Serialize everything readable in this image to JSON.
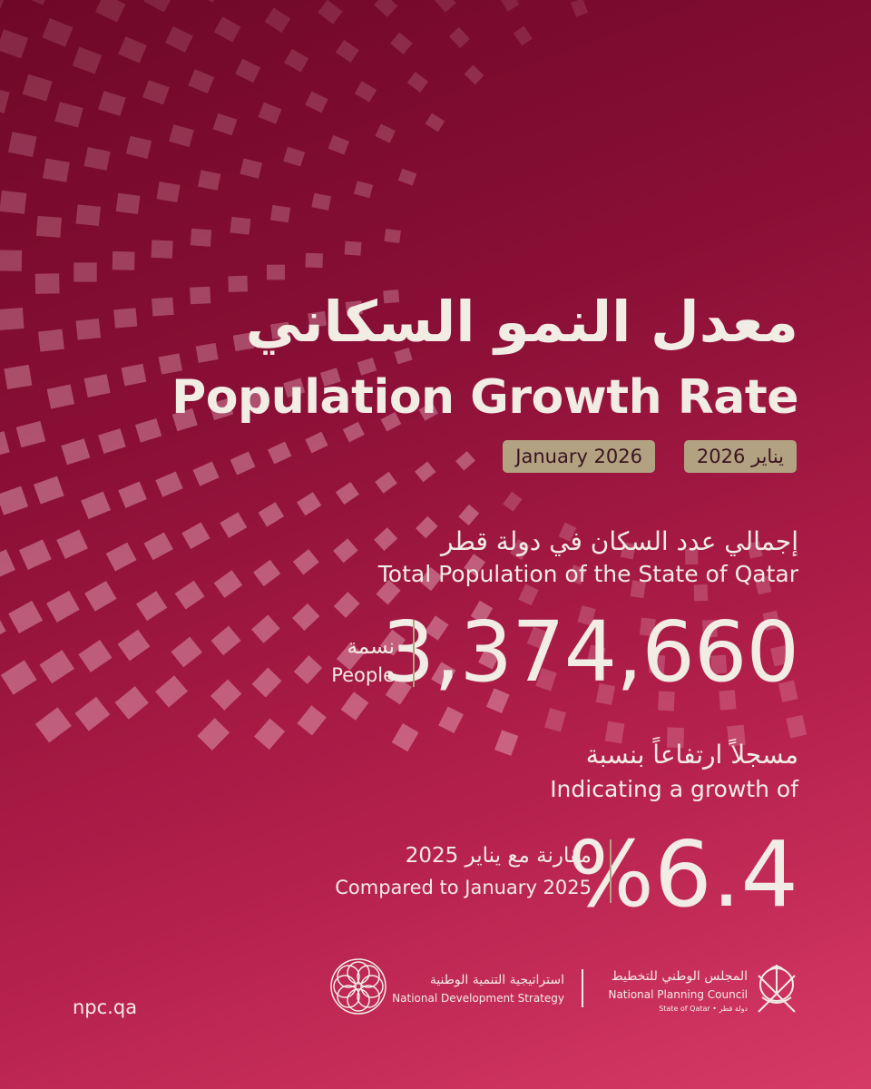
{
  "header": {
    "title_ar": "معدل النمو السكاني",
    "title_en": "Population Growth Rate",
    "date_ar": "يناير 2026",
    "date_en": "January 2026"
  },
  "population": {
    "label_ar": "إجمالي عدد السكان في دولة قطر",
    "label_en": "Total Population of the State of Qatar",
    "value": "3,374,660",
    "unit_ar": "نسمة",
    "unit_en": "People"
  },
  "growth": {
    "label_ar": "مسجلاً ارتفاعاً بنسبة",
    "label_en": "Indicating a growth of",
    "value": "%6.4",
    "compare_ar": "مقارنة مع يناير 2025",
    "compare_en": "Compared to January 2025"
  },
  "footer": {
    "website": "npc.qa",
    "nds_ar": "استراتيجية التنمية الوطنية",
    "nds_en": "National Development Strategy",
    "npc_ar": "المجلس الوطني للتخطيط",
    "npc_en": "National Planning Council",
    "npc_country": "State of Qatar • دولة قطر"
  }
}
